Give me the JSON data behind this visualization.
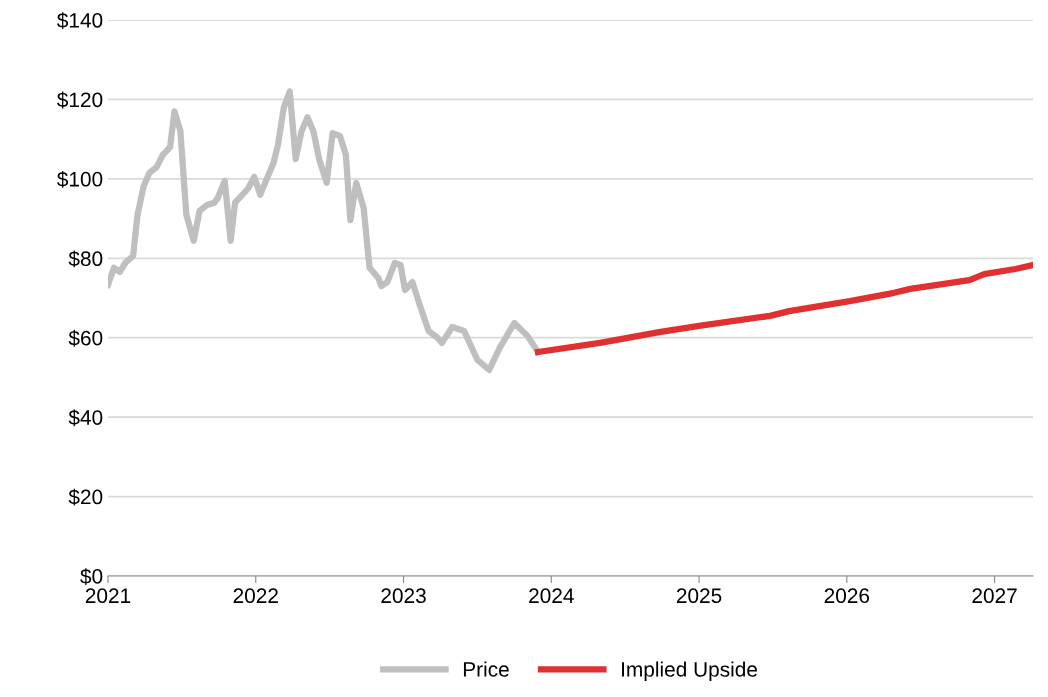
{
  "chart_data": {
    "type": "line",
    "xlim": [
      2021,
      2027.26
    ],
    "xticks": [
      2021,
      2022,
      2023,
      2024,
      2025,
      2026,
      2027
    ],
    "ylim": [
      0,
      140
    ],
    "yticks": [
      {
        "value": 0,
        "label": "$0"
      },
      {
        "value": 20,
        "label": "$20"
      },
      {
        "value": 40,
        "label": "$40"
      },
      {
        "value": 60,
        "label": "$60"
      },
      {
        "value": 80,
        "label": "$80"
      },
      {
        "value": 100,
        "label": "$100"
      },
      {
        "value": 120,
        "label": "$120"
      },
      {
        "value": 140,
        "label": "$140"
      }
    ],
    "grid": "y",
    "legend": "bottom",
    "marker": "none",
    "series": [
      {
        "name": "Price",
        "color": "#bfbfbf",
        "line_style": "solid",
        "x": [
          2021,
          2021.04,
          2021.08,
          2021.12,
          2021.17,
          2021.2,
          2021.24,
          2021.28,
          2021.33,
          2021.37,
          2021.42,
          2021.45,
          2021.49,
          2021.53,
          2021.58,
          2021.62,
          2021.67,
          2021.72,
          2021.74,
          2021.79,
          2021.83,
          2021.86,
          2021.91,
          2021.95,
          2021.99,
          2022.03,
          2022.08,
          2022.12,
          2022.15,
          2022.19,
          2022.23,
          2022.27,
          2022.31,
          2022.35,
          2022.39,
          2022.43,
          2022.48,
          2022.52,
          2022.57,
          2022.61,
          2022.64,
          2022.68,
          2022.73,
          2022.77,
          2022.83,
          2022.85,
          2022.89,
          2022.94,
          2022.98,
          2023.01,
          2023.06,
          2023.11,
          2023.17,
          2023.23,
          2023.26,
          2023.33,
          2023.41,
          2023.5,
          2023.58,
          2023.65,
          2023.75,
          2023.84,
          2023.91
        ],
        "values": [
          73.3,
          77.6,
          76.6,
          79,
          80.6,
          91,
          98,
          101.5,
          103,
          106,
          108,
          117,
          112,
          91,
          84.4,
          92,
          93.4,
          94,
          95,
          99.5,
          84.4,
          94,
          96,
          97.7,
          100.5,
          96,
          100.5,
          104,
          108.5,
          118,
          122,
          105,
          112,
          115.5,
          112,
          104.8,
          99,
          111.5,
          110.8,
          106,
          89.6,
          99,
          92.7,
          77.6,
          75,
          73,
          74,
          78.8,
          78.3,
          72,
          74,
          68.2,
          61.7,
          60,
          58.7,
          62.7,
          61.7,
          54.4,
          51.9,
          57.4,
          63.7,
          60.4,
          56.4
        ]
      },
      {
        "name": "Implied Upside",
        "color": "#e03030",
        "line_style": "solid",
        "x": [
          2023.91,
          2024.33,
          2024.73,
          2025.0,
          2025.48,
          2025.61,
          2026.02,
          2026.32,
          2026.43,
          2026.83,
          2026.93,
          2027.14,
          2027.26
        ],
        "values": [
          56.4,
          58.7,
          61.4,
          63,
          65.5,
          66.7,
          69.2,
          71.3,
          72.3,
          74.5,
          76,
          77.3,
          78.3
        ]
      }
    ]
  }
}
